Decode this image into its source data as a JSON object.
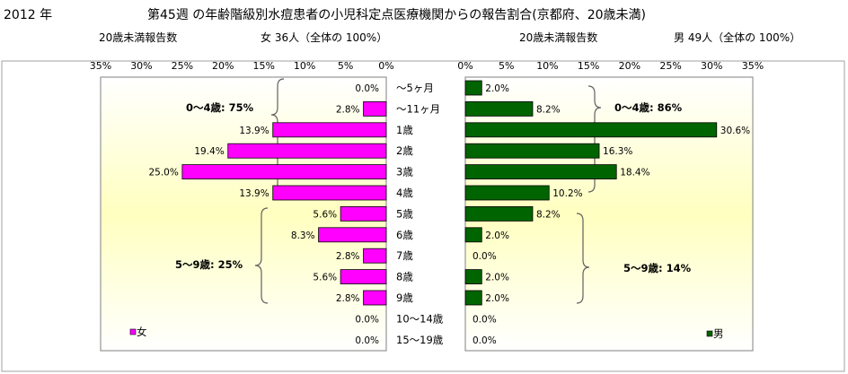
{
  "title": {
    "year": "2012 年",
    "main": "第45週 の年齢階級別水痘患者の小児科定点医療機関からの報告割合(京都府、20歳未満)"
  },
  "left_panel": {
    "report_label": "20歳未満報告数",
    "summary": "女  36人（全体の  100%）",
    "legend": "女",
    "group_labels": [
      "0～4歳: 75%",
      "5～9歳: 25%"
    ]
  },
  "right_panel": {
    "report_label": "20歳未満報告数",
    "summary": "男  49人（全体の  100%）",
    "legend": "男",
    "group_labels": [
      "0～4歳: 86%",
      "5～9歳: 14%"
    ]
  },
  "colors": {
    "female": "#ff00ff",
    "male": "#006400",
    "background_top": "#ffffff",
    "background_band": "#ffffc0"
  },
  "chart_data": [
    {
      "type": "bar",
      "orientation": "horizontal",
      "direction": "right-to-left",
      "categories": [
        "～5ヶ月",
        "～11ヶ月",
        "1歳",
        "2歳",
        "3歳",
        "4歳",
        "5歳",
        "6歳",
        "7歳",
        "8歳",
        "9歳",
        "10～14歳",
        "15～19歳"
      ],
      "series": [
        {
          "name": "女",
          "values": [
            0.0,
            2.8,
            13.9,
            19.4,
            25.0,
            13.9,
            5.6,
            8.3,
            2.8,
            5.6,
            2.8,
            0.0,
            0.0
          ],
          "labels": [
            "0.0%",
            "2.8%",
            "13.9%",
            "19.4%",
            "25.0%",
            "13.9%",
            "5.6%",
            "8.3%",
            "2.8%",
            "5.6%",
            "2.8%",
            "0.0%",
            "0.0%"
          ]
        }
      ],
      "xlim": [
        0,
        35
      ],
      "ticks": [
        "35%",
        "30%",
        "25%",
        "20%",
        "15%",
        "10%",
        "5%",
        "0%"
      ],
      "legend_position": "bottom-left"
    },
    {
      "type": "bar",
      "orientation": "horizontal",
      "direction": "left-to-right",
      "categories": [
        "～5ヶ月",
        "～11ヶ月",
        "1歳",
        "2歳",
        "3歳",
        "4歳",
        "5歳",
        "6歳",
        "7歳",
        "8歳",
        "9歳",
        "10～14歳",
        "15～19歳"
      ],
      "series": [
        {
          "name": "男",
          "values": [
            2.0,
            8.2,
            30.6,
            16.3,
            18.4,
            10.2,
            8.2,
            2.0,
            0.0,
            2.0,
            2.0,
            0.0,
            0.0
          ],
          "labels": [
            "2.0%",
            "8.2%",
            "30.6%",
            "16.3%",
            "18.4%",
            "10.2%",
            "8.2%",
            "2.0%",
            "0.0%",
            "2.0%",
            "2.0%",
            "0.0%",
            "0.0%"
          ]
        }
      ],
      "xlim": [
        0,
        35
      ],
      "ticks": [
        "0%",
        "5%",
        "10%",
        "15%",
        "20%",
        "25%",
        "30%",
        "35%"
      ],
      "legend_position": "bottom-right"
    }
  ]
}
